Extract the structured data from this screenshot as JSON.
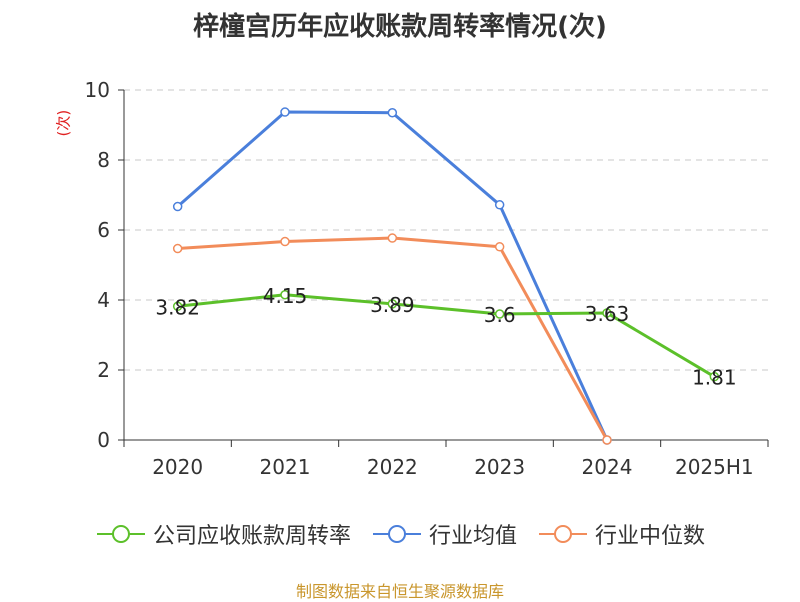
{
  "chart_data": {
    "type": "line",
    "title": "梓橦宫历年应收账款周转率情况(次)",
    "ylabel": "(次)",
    "xlabel": "",
    "categories": [
      "2020",
      "2021",
      "2022",
      "2023",
      "2024",
      "2025H1"
    ],
    "ylim": [
      0,
      10
    ],
    "yticks": [
      "0",
      "2",
      "4",
      "6",
      "8",
      "10"
    ],
    "series": [
      {
        "name": "公司应收账款周转率",
        "color": "#5cc02a",
        "values": [
          3.82,
          4.15,
          3.89,
          3.6,
          3.63,
          1.81
        ],
        "labels": [
          "3.82",
          "4.15",
          "3.89",
          "3.6",
          "3.63",
          "1.81"
        ]
      },
      {
        "name": "行业均值",
        "color": "#4a7fdb",
        "values": [
          6.67,
          9.37,
          9.35,
          6.72,
          0,
          null
        ]
      },
      {
        "name": "行业中位数",
        "color": "#f28c5a",
        "values": [
          5.47,
          5.67,
          5.77,
          5.52,
          0,
          null
        ]
      }
    ],
    "grid": true,
    "legend": "bottom"
  },
  "source": "制图数据来自恒生聚源数据库"
}
